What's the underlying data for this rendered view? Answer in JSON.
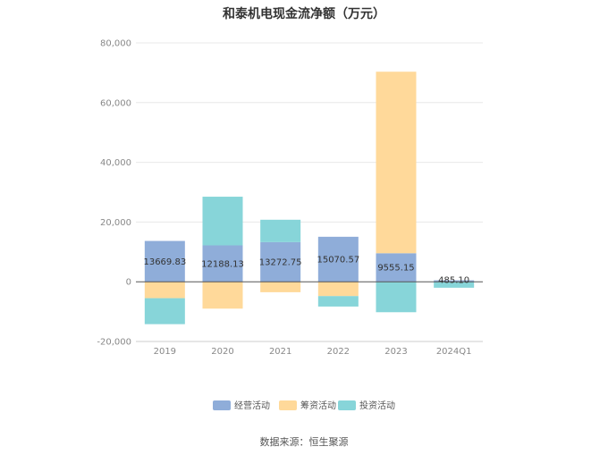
{
  "chart_data": {
    "type": "bar",
    "stacked": true,
    "title": "和泰机电现金流净额（万元）",
    "categories": [
      "2019",
      "2020",
      "2021",
      "2022",
      "2023",
      "2024Q1"
    ],
    "series": [
      {
        "name": "经营活动",
        "color": "#8fadd9",
        "values": [
          13669.83,
          12188.13,
          13272.75,
          15070.57,
          9555.15,
          485.1
        ],
        "labels": [
          "13669.83",
          "12188.13",
          "13272.75",
          "15070.57",
          "9555.15",
          "485.10"
        ]
      },
      {
        "name": "筹资活动",
        "color": "#ffd99a",
        "values": [
          -5500,
          -9000,
          -3500,
          -4800,
          60800,
          0
        ]
      },
      {
        "name": "投资活动",
        "color": "#87d5d9",
        "values": [
          -8700,
          16300,
          7500,
          -3500,
          -10200,
          -2000
        ]
      }
    ],
    "ylim": [
      -20000,
      80000
    ],
    "yticks": [
      "80,000",
      "60,000",
      "40,000",
      "20,000",
      "0",
      "-20,000"
    ],
    "ytick_values": [
      80000,
      60000,
      40000,
      20000,
      0,
      -20000
    ],
    "grid": true,
    "legend_position": "bottom"
  },
  "footer": {
    "source": "数据来源：恒生聚源"
  }
}
